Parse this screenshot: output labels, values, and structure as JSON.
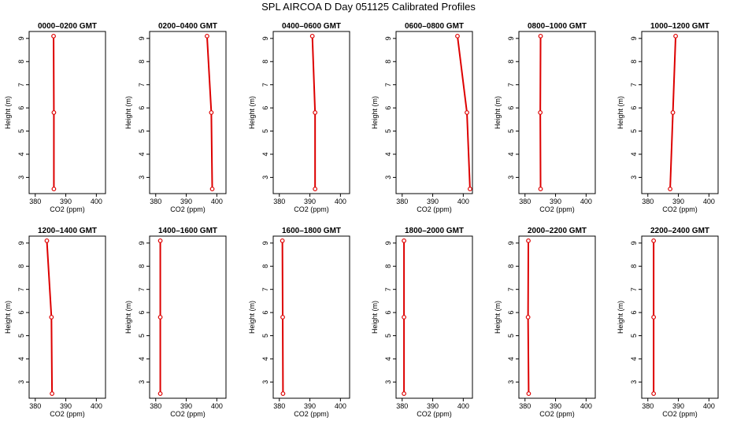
{
  "title": "SPL AIRCOA D  Day 051125  Calibrated Profiles",
  "colors": {
    "series": "#dd0000",
    "axis": "#000000",
    "background": "#ffffff"
  },
  "chart_data": {
    "type": "line",
    "layout": "grid 2 rows x 6 columns of small multiples",
    "xlabel": "CO2 (ppm)",
    "ylabel": "Height (m)",
    "xlim": [
      378,
      403
    ],
    "ylim": [
      2.3,
      9.3
    ],
    "xticks": [
      380,
      390,
      400
    ],
    "yticks": [
      3,
      4,
      5,
      6,
      7,
      8,
      9
    ],
    "heights": [
      2.5,
      5.8,
      9.1
    ],
    "panels": [
      {
        "title": "0000–0200 GMT",
        "co2": [
          386.1,
          386.1,
          386.0
        ]
      },
      {
        "title": "0200–0400 GMT",
        "co2": [
          398.5,
          398.2,
          396.8
        ]
      },
      {
        "title": "0400–0600 GMT",
        "co2": [
          391.7,
          391.7,
          390.8
        ]
      },
      {
        "title": "0600–0800 GMT",
        "co2": [
          402.2,
          401.2,
          398.1
        ]
      },
      {
        "title": "0800–1000 GMT",
        "co2": [
          385.1,
          385.0,
          385.1
        ]
      },
      {
        "title": "1000–1200 GMT",
        "co2": [
          387.3,
          388.2,
          389.1
        ]
      },
      {
        "title": "1200–1400 GMT",
        "co2": [
          385.5,
          385.3,
          383.8
        ]
      },
      {
        "title": "1400–1600 GMT",
        "co2": [
          381.5,
          381.5,
          381.5
        ]
      },
      {
        "title": "1600–1800 GMT",
        "co2": [
          381.2,
          381.1,
          381.0
        ]
      },
      {
        "title": "1800–2000 GMT",
        "co2": [
          380.6,
          380.6,
          380.6
        ]
      },
      {
        "title": "2000–2200 GMT",
        "co2": [
          381.2,
          381.0,
          381.1
        ]
      },
      {
        "title": "2200–2400 GMT",
        "co2": [
          381.9,
          381.9,
          381.9
        ]
      }
    ]
  }
}
